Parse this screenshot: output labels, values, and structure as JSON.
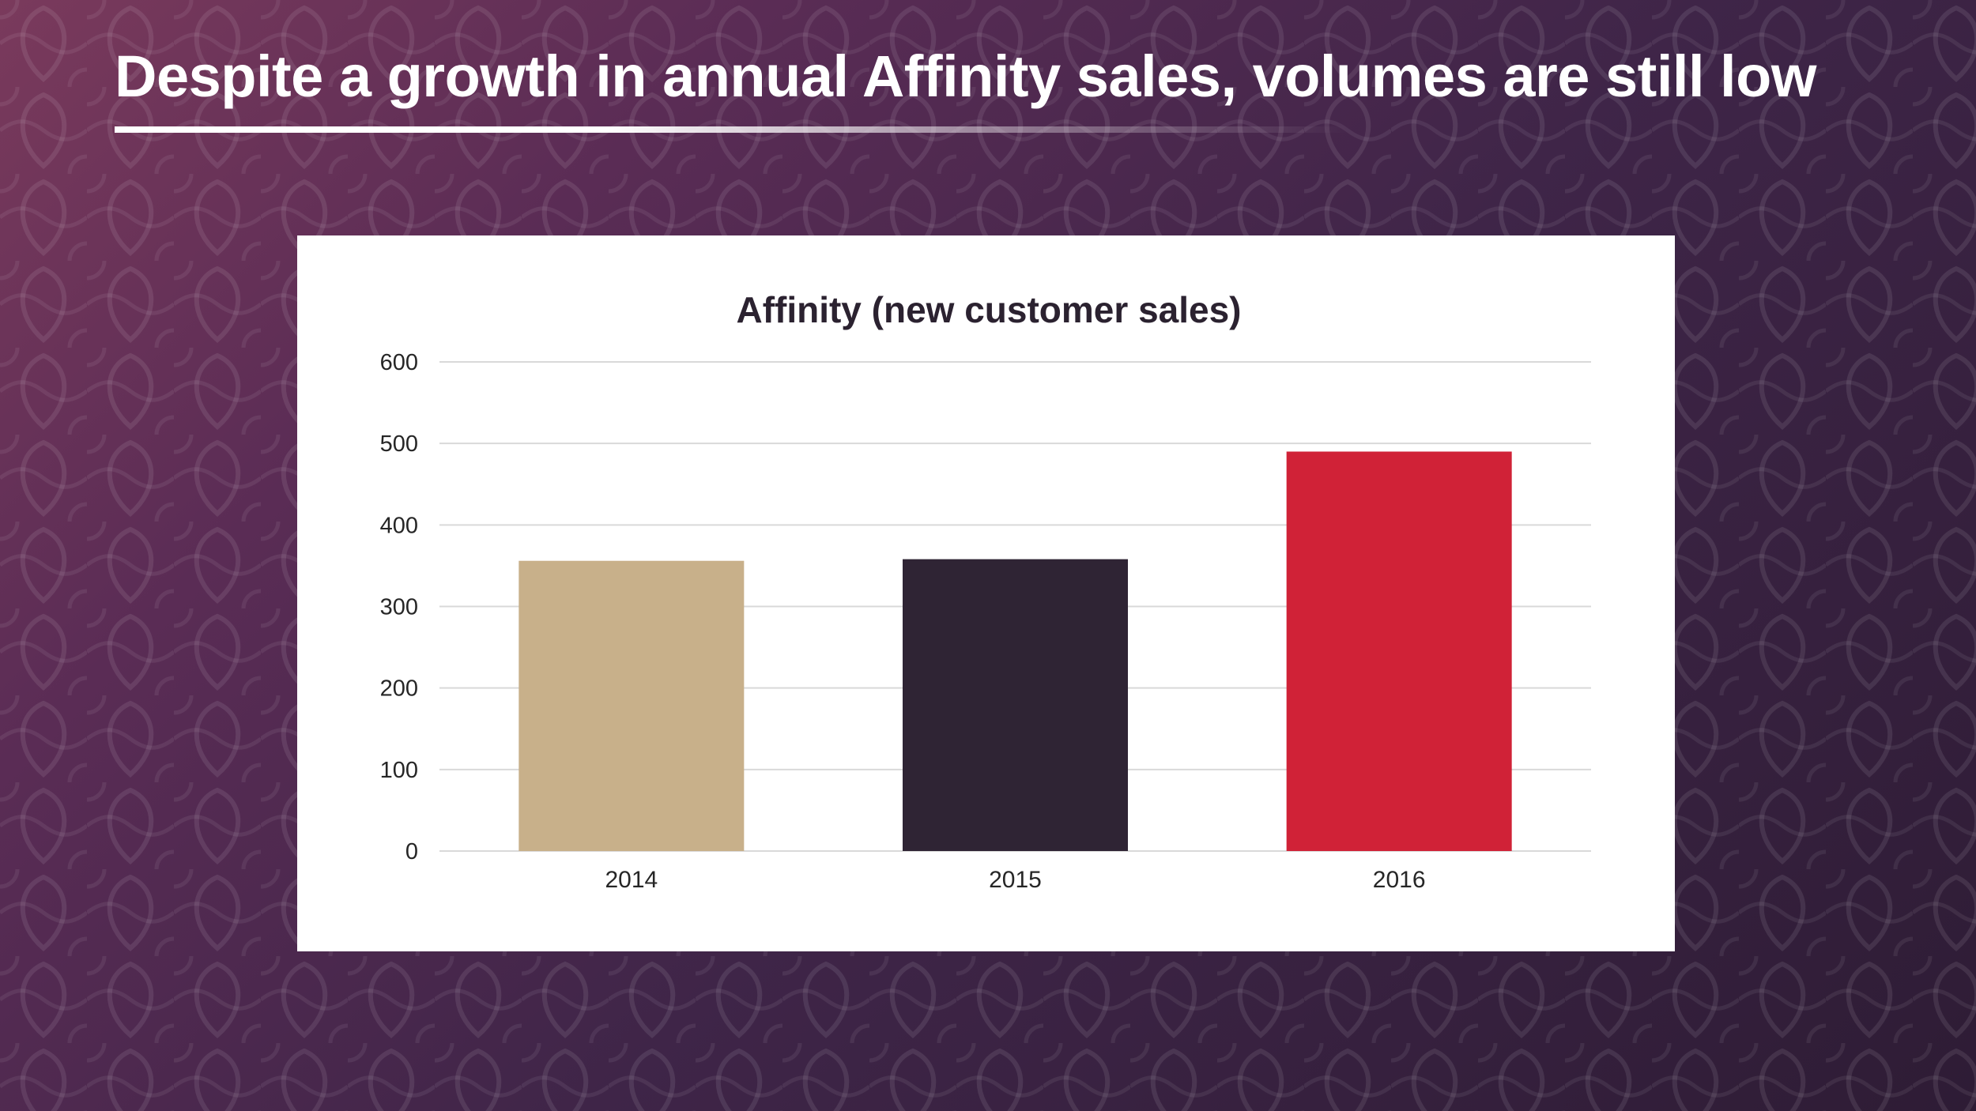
{
  "slide": {
    "title": "Despite a growth in annual Affinity sales, volumes are still low"
  },
  "colors": {
    "bar_2014": "#c8b08a",
    "bar_2015": "#2f2434",
    "bar_2016": "#d02237",
    "gridline": "#d9d9d9",
    "text": "#262626",
    "title_text": "#2b2230"
  },
  "chart_data": {
    "type": "bar",
    "title": "Affinity (new customer sales)",
    "categories": [
      "2014",
      "2015",
      "2016"
    ],
    "values": [
      356,
      358,
      490
    ],
    "xlabel": "",
    "ylabel": "",
    "ylim": [
      0,
      600
    ],
    "yticks": [
      "0",
      "100",
      "200",
      "300",
      "400",
      "500",
      "600"
    ],
    "grid": true,
    "legend": "none"
  }
}
